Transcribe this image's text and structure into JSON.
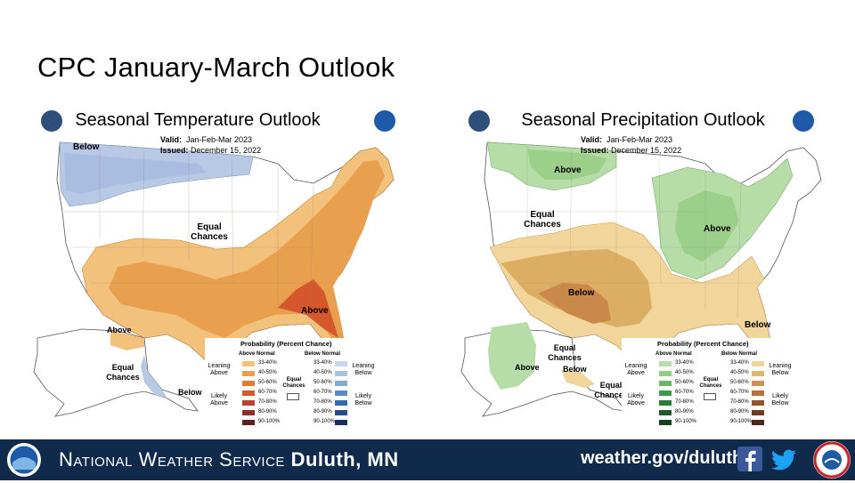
{
  "slide": {
    "title": "CPC January-March Outlook"
  },
  "colors": {
    "above_30": "#f2c17b",
    "above_40": "#e9a04e",
    "above_50": "#de7e36",
    "above_60": "#d4582c",
    "below_30": "#b8c9e6",
    "below_40": "#9fb8de",
    "wet_30": "#b6dca7",
    "wet_40": "#9bcf8a",
    "dry_30": "#f2d59a",
    "dry_40": "#dcae63",
    "dry_50": "#c8894a",
    "footer_bg": "#0f2a4a"
  },
  "temperature_map": {
    "title": "Seasonal Temperature Outlook",
    "valid_label": "Valid:",
    "valid_value": "Jan-Feb-Mar 2023",
    "issued_label": "Issued:",
    "issued_value": "December 15, 2022",
    "labels": {
      "below_nw": "Below",
      "equal_chances": "Equal Chances",
      "above_se": "Above",
      "above_ak": "Above",
      "equal_chances_ak": "Equal Chances",
      "below_ak": "Below"
    },
    "legend": {
      "title": "Probability (Percent Chance)",
      "col_above": "Above Normal",
      "col_below": "Below Normal",
      "rows": [
        "33-40%",
        "40-50%",
        "50-60%",
        "60-70%",
        "70-80%",
        "80-90%",
        "90-100%"
      ],
      "leaning_above": "Leaning Above",
      "likely_above": "Likely Above",
      "leaning_below": "Leaning Below",
      "likely_below": "Likely Below",
      "equal_chances": "Equal Chances",
      "above_colors": [
        "#f2c17b",
        "#e9a04e",
        "#de7e36",
        "#d4582c",
        "#b8412f",
        "#8c2c2c",
        "#5e1f1f"
      ],
      "below_colors": [
        "#c8d6ec",
        "#a9c2e2",
        "#87a9d6",
        "#5b8ac4",
        "#356ab0",
        "#244d8a",
        "#1b2f5e"
      ]
    }
  },
  "precipitation_map": {
    "title": "Seasonal Precipitation Outlook",
    "valid_label": "Valid:",
    "valid_value": "Jan-Feb-Mar 2023",
    "issued_label": "Issued:",
    "issued_value": "December 15, 2022",
    "labels": {
      "above_nw": "Above",
      "equal_chances": "Equal Chances",
      "above_ov": "Above",
      "below_sw": "Below",
      "below_se": "Below",
      "above_ak": "Above",
      "equal_chances_ak": "Equal Chances",
      "below_ak": "Below",
      "equal_chances_hi": "Equal Chances"
    },
    "legend": {
      "title": "Probability (Percent Chance)",
      "col_above": "Above Normal",
      "col_below": "Below Normal",
      "rows": [
        "33-40%",
        "40-50%",
        "50-60%",
        "60-70%",
        "70-80%",
        "80-90%",
        "90-100%"
      ],
      "leaning_above": "Leaning Above",
      "likely_above": "Likely Above",
      "leaning_below": "Leaning Below",
      "likely_below": "Likely Below",
      "equal_chances": "Equal Chances",
      "above_colors": [
        "#b6dca7",
        "#95cc85",
        "#6cb866",
        "#3f9a49",
        "#2a7a38",
        "#1f5c2b",
        "#163f1f"
      ],
      "below_colors": [
        "#f2d59a",
        "#e2b66e",
        "#cf9151",
        "#b8703e",
        "#93522f",
        "#6e3b22",
        "#4a2817"
      ]
    }
  },
  "footer": {
    "org_prefix": "National Weather Service",
    "org_office": "Duluth, MN",
    "url": "weather.gov/duluth",
    "icons": [
      "noaa-logo-icon",
      "facebook-icon",
      "twitter-icon",
      "weather-ready-nation-icon"
    ]
  }
}
